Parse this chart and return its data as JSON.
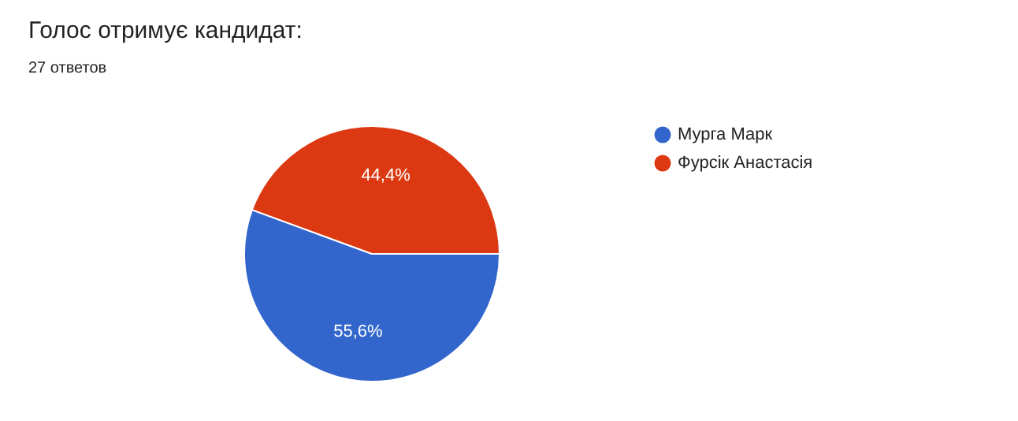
{
  "chart_data": {
    "type": "pie",
    "title": "Голос отримує кандидат:",
    "subtitle": "27 ответов",
    "categories": [
      "Мурга Марк",
      "Фурсік Анастасія"
    ],
    "values": [
      55.6,
      44.4
    ],
    "colors": [
      "#3366cc",
      "#dc3912"
    ],
    "value_labels": [
      "55,6%",
      "44,4%"
    ],
    "legend": "top right"
  }
}
